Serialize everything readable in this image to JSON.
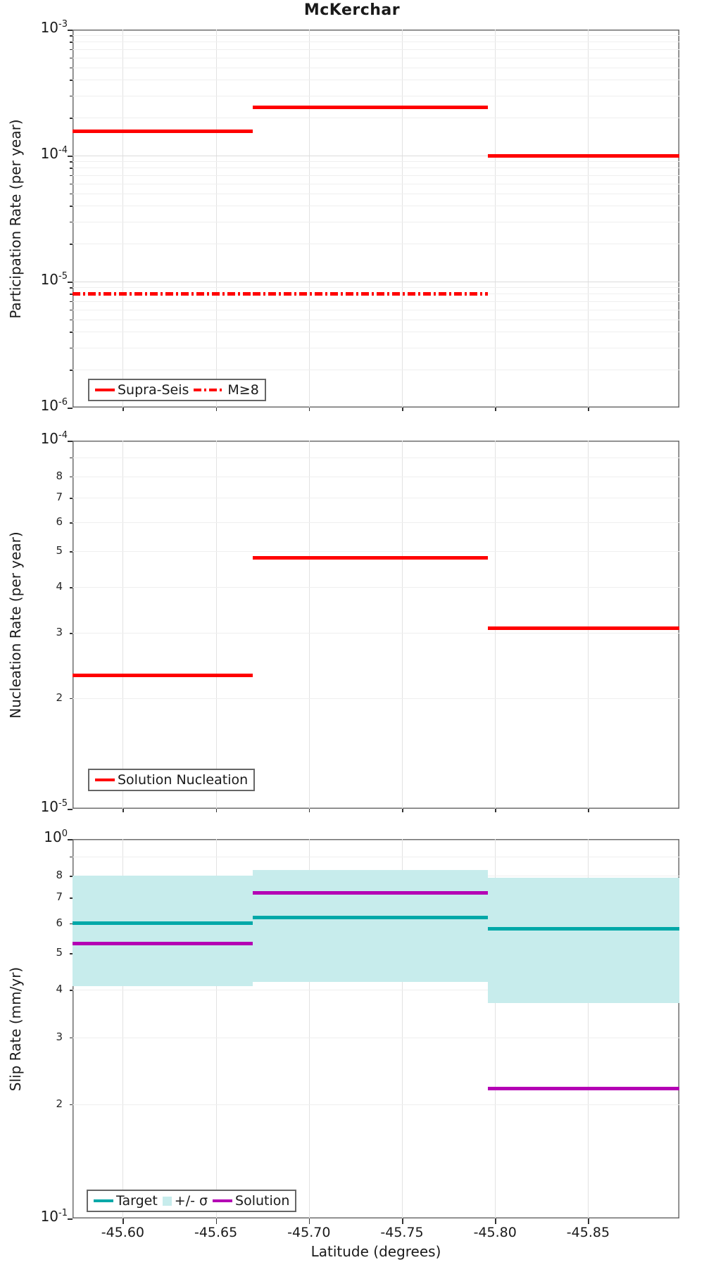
{
  "title": "McKerchar",
  "xlabel": "Latitude (degrees)",
  "colors": {
    "red": "#ff0000",
    "teal": "#00a8a8",
    "purple": "#b400b4",
    "band": "#c7ecec",
    "grid_major": "#dcdcdc",
    "grid_minor": "#efefef",
    "grid_vert": "#e2e2e2"
  },
  "x_axis": {
    "lim": [
      -45.573,
      -45.899
    ],
    "ticks": [
      {
        "v": -45.6,
        "label": "-45.60"
      },
      {
        "v": -45.65,
        "label": "-45.65"
      },
      {
        "v": -45.7,
        "label": "-45.70"
      },
      {
        "v": -45.75,
        "label": "-45.75"
      },
      {
        "v": -45.8,
        "label": "-45.80"
      },
      {
        "v": -45.85,
        "label": "-45.85"
      }
    ]
  },
  "segment_edges": [
    -45.573,
    -45.67,
    -45.796,
    -45.899
  ],
  "chart_data": [
    {
      "type": "step-line",
      "ylabel": "Participation Rate (per year)",
      "yscale": "log",
      "ylim": [
        1e-06,
        0.001
      ],
      "ytick_exponents": [
        -3,
        -4,
        -5,
        -6
      ],
      "minor_tick_labels": [],
      "series": [
        {
          "name": "Supra-Seis",
          "color": "red",
          "style": "solid",
          "values": [
            0.000155,
            0.00024,
            0.0001
          ]
        },
        {
          "name": "M≥8",
          "color": "red",
          "style": "dashdot",
          "values": [
            8e-06,
            8e-06,
            null
          ]
        }
      ],
      "legend": {
        "items": [
          {
            "label": "Supra-Seis",
            "swatch": "line",
            "color": "red"
          },
          {
            "label": "M≥8",
            "swatch": "dashdot",
            "color": "red"
          }
        ]
      }
    },
    {
      "type": "step-line",
      "ylabel": "Nucleation Rate (per year)",
      "yscale": "log",
      "ylim": [
        1e-05,
        0.0001
      ],
      "ytick_exponents": [
        -4,
        -5
      ],
      "minor_tick_labels": [
        8,
        7,
        6,
        5,
        4,
        3,
        2
      ],
      "series": [
        {
          "name": "Solution Nucleation",
          "color": "red",
          "style": "solid",
          "values": [
            2.3e-05,
            4.8e-05,
            3.1e-05
          ]
        }
      ],
      "legend": {
        "items": [
          {
            "label": "Solution Nucleation",
            "swatch": "line",
            "color": "red"
          }
        ]
      }
    },
    {
      "type": "step-line-with-band",
      "ylabel": "Slip Rate (mm/yr)",
      "yscale": "log",
      "ylim": [
        0.1,
        1.0
      ],
      "ytick_exponents": [
        0,
        -1
      ],
      "minor_tick_labels": [
        8,
        7,
        6,
        5,
        4,
        3,
        2
      ],
      "band": {
        "name": "+/- σ",
        "color": "band",
        "lower": [
          0.41,
          0.42,
          0.37
        ],
        "upper": [
          0.8,
          0.83,
          0.79
        ]
      },
      "series": [
        {
          "name": "Target",
          "color": "teal",
          "style": "solid",
          "values": [
            0.6,
            0.62,
            0.58
          ]
        },
        {
          "name": "Solution",
          "color": "purple",
          "style": "solid",
          "values": [
            0.53,
            0.72,
            0.22
          ]
        }
      ],
      "legend": {
        "items": [
          {
            "label": "Target",
            "swatch": "line",
            "color": "teal"
          },
          {
            "label": "+/- σ",
            "swatch": "patch",
            "color": "band"
          },
          {
            "label": "Solution",
            "swatch": "line",
            "color": "purple"
          }
        ]
      }
    }
  ]
}
